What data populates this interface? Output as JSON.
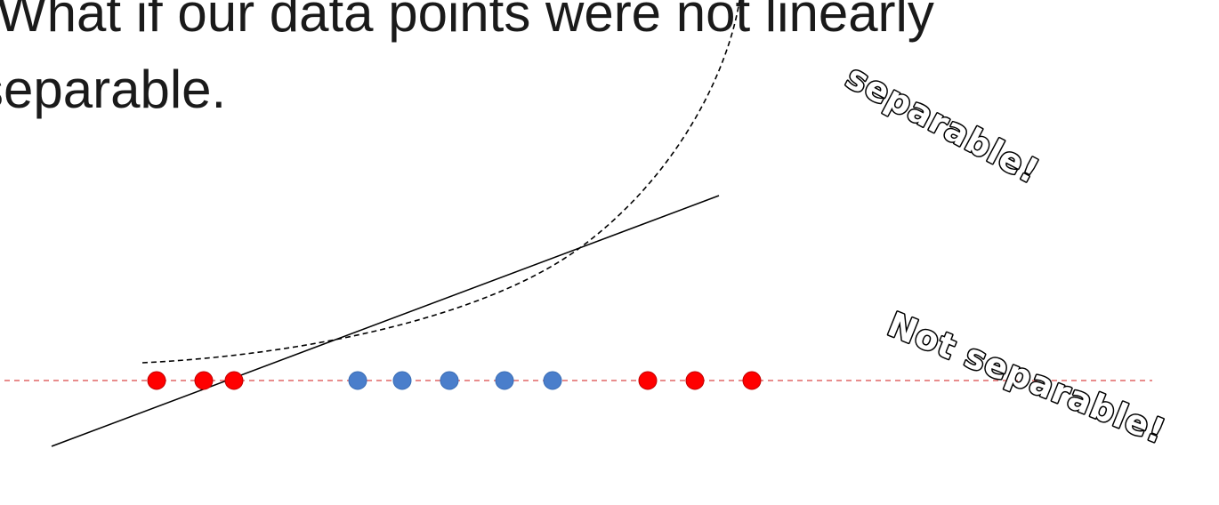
{
  "slide": {
    "title_line_1": "What if our data points were not linearly",
    "title_line_2": "separable."
  },
  "annotations": {
    "separable": "separable!",
    "not_separable": "Not separable!"
  },
  "colors": {
    "class_a": "#ff0000",
    "class_b": "#4a7ecb",
    "axis": "#e06666",
    "text": "#1a1a1a"
  },
  "points": [
    {
      "x": 1,
      "class": "a"
    },
    {
      "x": 2,
      "class": "a"
    },
    {
      "x": 3,
      "class": "a"
    },
    {
      "x": 4,
      "class": "b"
    },
    {
      "x": 5,
      "class": "b"
    },
    {
      "x": 6,
      "class": "b"
    },
    {
      "x": 7,
      "class": "b"
    },
    {
      "x": 8,
      "class": "b"
    },
    {
      "x": 9,
      "class": "a"
    },
    {
      "x": 10,
      "class": "a"
    },
    {
      "x": 11,
      "class": "a"
    }
  ]
}
